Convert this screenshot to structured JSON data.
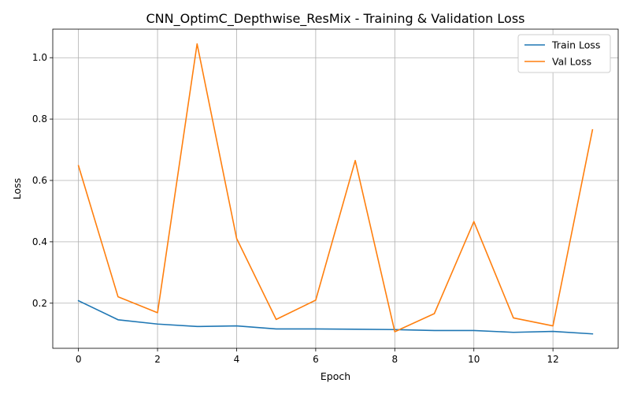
{
  "chart_data": {
    "type": "line",
    "title": "CNN_OptimC_Depthwise_ResMix - Training & Validation Loss",
    "xlabel": "Epoch",
    "ylabel": "Loss",
    "x": [
      0,
      1,
      2,
      3,
      4,
      5,
      6,
      7,
      8,
      9,
      10,
      11,
      12,
      13
    ],
    "xlim": [
      -0.65,
      13.65
    ],
    "ylim": [
      0.053,
      1.093
    ],
    "x_ticks": [
      0,
      2,
      4,
      6,
      8,
      10,
      12
    ],
    "y_ticks": [
      0.2,
      0.4,
      0.6,
      0.8,
      1.0
    ],
    "y_tick_labels": [
      "0.2",
      "0.4",
      "0.6",
      "0.8",
      "1.0"
    ],
    "grid": true,
    "legend_position": "top-right",
    "series": [
      {
        "name": "Train Loss",
        "color": "#1f77b4",
        "values": [
          0.208,
          0.146,
          0.132,
          0.124,
          0.126,
          0.116,
          0.116,
          0.115,
          0.114,
          0.111,
          0.111,
          0.105,
          0.108,
          0.1
        ]
      },
      {
        "name": "Val Loss",
        "color": "#ff7f0e",
        "values": [
          0.648,
          0.221,
          0.169,
          1.045,
          0.411,
          0.147,
          0.21,
          0.665,
          0.107,
          0.166,
          0.466,
          0.152,
          0.126,
          0.765
        ]
      }
    ]
  }
}
